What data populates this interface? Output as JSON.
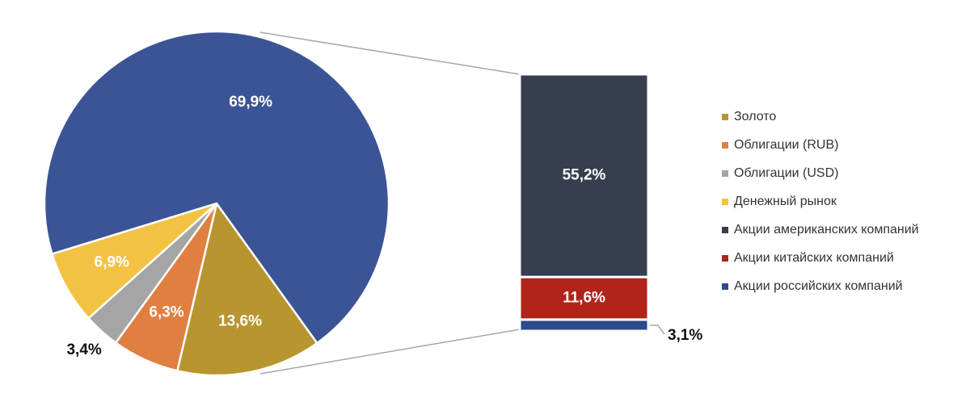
{
  "chart_data": [
    {
      "type": "pie",
      "categories": [
        "Золото",
        "Облигации (RUB)",
        "Облигации (USD)",
        "Денежный рынок",
        null
      ],
      "values": [
        13.6,
        6.3,
        3.4,
        6.9,
        69.9
      ],
      "value_labels": [
        "13,6%",
        "6,3%",
        "3,4%",
        "6,9%",
        "69,9%"
      ],
      "colors": [
        "#b8952f",
        "#e07f42",
        "#a5a5a5",
        "#f4c243",
        "#3a5495"
      ]
    },
    {
      "type": "bar",
      "stacked": true,
      "series": [
        {
          "name": "Акции американских компаний",
          "color": "#363e4f",
          "values": [
            55.2
          ],
          "value_labels": [
            "55,2%"
          ]
        },
        {
          "name": "Акции китайских компаний",
          "color": "#b02419",
          "values": [
            11.6
          ],
          "value_labels": [
            "11,6%"
          ]
        },
        {
          "name": "Акции российских компаний",
          "color": "#2c4a8c",
          "values": [
            3.1
          ],
          "value_labels": [
            "3,1%"
          ]
        }
      ]
    }
  ]
}
